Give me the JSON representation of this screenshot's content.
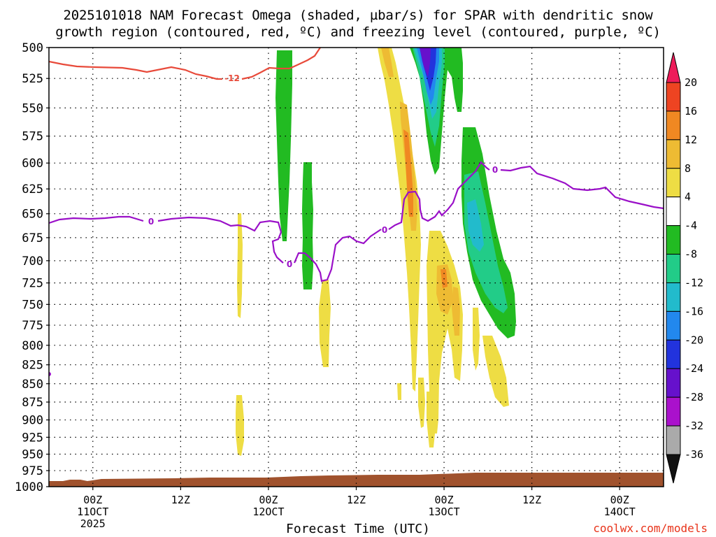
{
  "chart_data": {
    "type": "cross-section",
    "title": "2025101018 NAM Forecast Omega (shaded, µbar/s) for SPAR with dendritic snow",
    "subtitle": "growth region (contoured, red, ºC) and freezing level (contoured, purple, ºC)",
    "xlabel": "Forecast Time (UTC)",
    "y_axis": {
      "levels": [
        500,
        525,
        550,
        575,
        600,
        625,
        650,
        675,
        700,
        725,
        750,
        775,
        800,
        825,
        850,
        875,
        900,
        925,
        950,
        975,
        1000
      ],
      "range": [
        500,
        1000
      ],
      "inverted": true,
      "scale": "log-pressure"
    },
    "x_axis": {
      "ticks": [
        {
          "label": "00Z",
          "sub": "11OCT",
          "year": "2025",
          "hour": 6
        },
        {
          "label": "12Z",
          "sub": "",
          "year": "",
          "hour": 18
        },
        {
          "label": "00Z",
          "sub": "12OCT",
          "year": "",
          "hour": 30
        },
        {
          "label": "12Z",
          "sub": "",
          "year": "",
          "hour": 42
        },
        {
          "label": "00Z",
          "sub": "13OCT",
          "year": "",
          "hour": 54
        },
        {
          "label": "12Z",
          "sub": "",
          "year": "",
          "hour": 66
        },
        {
          "label": "00Z",
          "sub": "14OCT",
          "year": "",
          "hour": 78
        }
      ],
      "range_hours": [
        0,
        84
      ]
    },
    "colorbar": {
      "levels": [
        "20",
        "16",
        "12",
        "8",
        "4",
        "-4",
        "-8",
        "-12",
        "-16",
        "-20",
        "-24",
        "-28",
        "-32",
        "-36"
      ],
      "colors": [
        "#ee1c5a",
        "#ee4422",
        "#f08822",
        "#eebb33",
        "#eedd44",
        "#ffffff",
        "#22bb22",
        "#22cc88",
        "#22bbcc",
        "#2288ee",
        "#2233dd",
        "#6611cc",
        "#aa11cc",
        "#aaaaaa",
        "#111111"
      ]
    },
    "contours": {
      "dgz": {
        "color": "#e84a3a",
        "label": "-12"
      },
      "freezing": {
        "color": "#9a10c8",
        "label": "0"
      }
    },
    "terrain_color": "#a0522d",
    "grid": true,
    "legend": "right"
  },
  "page": {
    "credit": "coolwx.com/models"
  }
}
